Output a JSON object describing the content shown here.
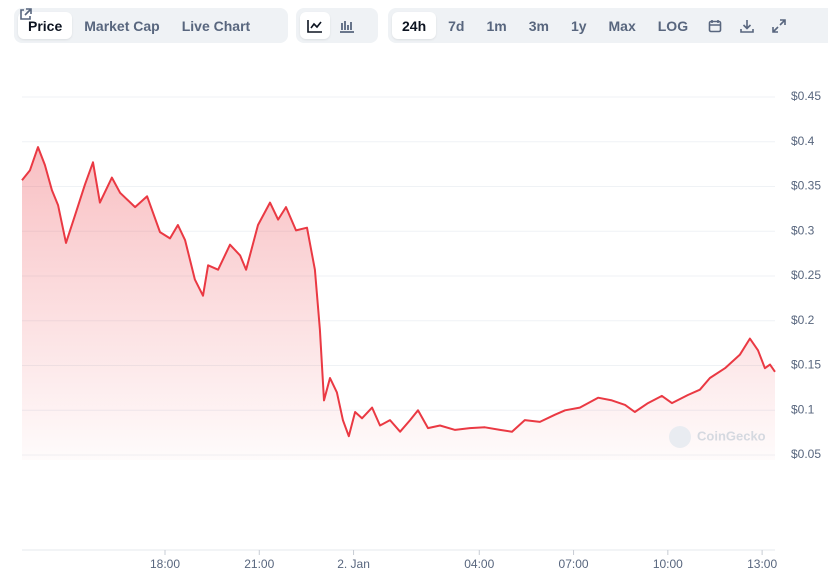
{
  "toolbar": {
    "views": [
      "Price",
      "Market Cap",
      "Live Chart"
    ],
    "ranges": [
      "24h",
      "7d",
      "1m",
      "3m",
      "1y",
      "Max",
      "LOG"
    ]
  },
  "watermark": "CoinGecko",
  "chart_data": {
    "type": "area",
    "color": "#ea3943",
    "grid": true,
    "x": [
      13.45,
      13.7,
      13.96,
      14.18,
      14.4,
      14.6,
      14.85,
      15.14,
      15.45,
      15.71,
      15.93,
      16.31,
      16.57,
      17.05,
      17.43,
      17.84,
      18.16,
      18.41,
      18.64,
      18.95,
      19.21,
      19.37,
      19.69,
      20.07,
      20.39,
      20.58,
      20.96,
      21.34,
      21.6,
      21.85,
      22.17,
      22.52,
      22.77,
      22.93,
      23.06,
      23.25,
      23.47,
      23.66,
      23.85,
      24.05,
      24.27,
      24.59,
      24.84,
      25.16,
      25.48,
      25.8,
      26.05,
      26.37,
      26.75,
      27.23,
      27.7,
      28.18,
      28.66,
      29.04,
      29.45,
      29.93,
      30.41,
      30.73,
      31.2,
      31.78,
      32.22,
      32.64,
      32.95,
      33.37,
      33.81,
      34.13,
      34.64,
      35.02,
      35.34,
      35.82,
      36.29,
      36.61,
      36.87,
      37.09,
      37.25,
      37.41
    ],
    "values": [
      0.357,
      0.368,
      0.394,
      0.374,
      0.346,
      0.329,
      0.287,
      0.318,
      0.352,
      0.377,
      0.332,
      0.36,
      0.343,
      0.327,
      0.339,
      0.299,
      0.292,
      0.307,
      0.29,
      0.246,
      0.228,
      0.262,
      0.257,
      0.285,
      0.273,
      0.257,
      0.307,
      0.332,
      0.313,
      0.327,
      0.301,
      0.304,
      0.257,
      0.19,
      0.111,
      0.136,
      0.12,
      0.089,
      0.071,
      0.098,
      0.091,
      0.103,
      0.083,
      0.089,
      0.076,
      0.089,
      0.1,
      0.08,
      0.083,
      0.078,
      0.08,
      0.081,
      0.078,
      0.076,
      0.089,
      0.087,
      0.095,
      0.1,
      0.103,
      0.114,
      0.111,
      0.106,
      0.098,
      0.108,
      0.116,
      0.108,
      0.117,
      0.123,
      0.136,
      0.147,
      0.162,
      0.18,
      0.167,
      0.147,
      0.151,
      0.143
    ],
    "xlim": [
      13.45,
      37.41
    ],
    "xticks": [
      {
        "value": 18,
        "label": "18:00"
      },
      {
        "value": 21,
        "label": "21:00"
      },
      {
        "value": 24,
        "label": "2. Jan"
      },
      {
        "value": 28,
        "label": "04:00"
      },
      {
        "value": 31,
        "label": "07:00"
      },
      {
        "value": 34,
        "label": "10:00"
      },
      {
        "value": 37,
        "label": "13:00"
      }
    ],
    "ylim": [
      0.05,
      0.45
    ],
    "yticks": [
      {
        "value": 0.05,
        "label": "$0.05"
      },
      {
        "value": 0.1,
        "label": "$0.1"
      },
      {
        "value": 0.15,
        "label": "$0.15"
      },
      {
        "value": 0.2,
        "label": "$0.2"
      },
      {
        "value": 0.25,
        "label": "$0.25"
      },
      {
        "value": 0.3,
        "label": "$0.3"
      },
      {
        "value": 0.35,
        "label": "$0.35"
      },
      {
        "value": 0.4,
        "label": "$0.4"
      },
      {
        "value": 0.45,
        "label": "$0.45"
      }
    ]
  }
}
